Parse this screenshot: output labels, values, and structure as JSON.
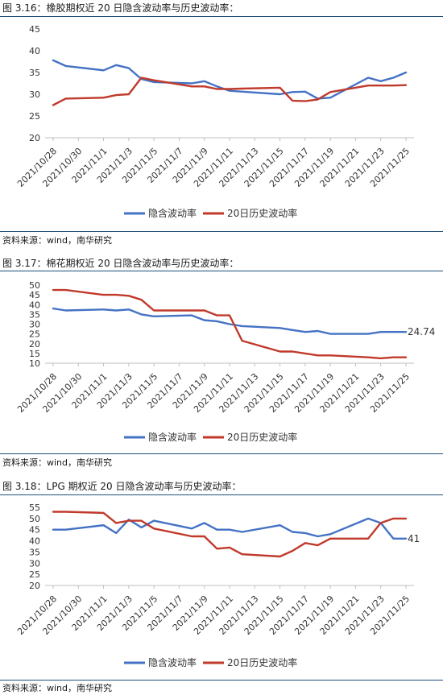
{
  "figures": [
    {
      "title": "图 3.16：橡胶期权近 20 日隐含波动率与历史波动率：",
      "source": "资料来源：wind，南华研究"
    },
    {
      "title": "图 3.17：棉花期权近 20 日隐含波动率与历史波动率：",
      "source": "资料来源：wind，南华研究"
    },
    {
      "title": "图 3.18：LPG 期权近 20 日隐含波动率与历史波动率：",
      "source": "资料来源：wind，南华研究"
    }
  ],
  "colors": {
    "implied": "#4472c4",
    "historical": "#c0392b",
    "rule": "#1f4e79",
    "grid": "#d9d9d9"
  },
  "chart_data": [
    {
      "type": "line",
      "x_ticks": [
        "2021/10/28",
        "2021/10/30",
        "2021/11/1",
        "2021/11/3",
        "2021/11/5",
        "2021/11/7",
        "2021/11/9",
        "2021/11/11",
        "2021/11/13",
        "2021/11/15",
        "2021/11/17",
        "2021/11/19",
        "2021/11/21",
        "2021/11/23",
        "2021/11/25"
      ],
      "ylim": [
        20,
        45
      ],
      "y_ticks": [
        20,
        25,
        30,
        35,
        40,
        45
      ],
      "legend": "bottom",
      "series": [
        {
          "name": "隐含波动率",
          "color": "#4472c4",
          "x": [
            "2021/10/28",
            "2021/10/29",
            "2021/11/1",
            "2021/11/2",
            "2021/11/3",
            "2021/11/4",
            "2021/11/5",
            "2021/11/8",
            "2021/11/9",
            "2021/11/10",
            "2021/11/11",
            "2021/11/12",
            "2021/11/15",
            "2021/11/16",
            "2021/11/17",
            "2021/11/18",
            "2021/11/19",
            "2021/11/22",
            "2021/11/23",
            "2021/11/24",
            "2021/11/25"
          ],
          "values": [
            37.8,
            36.5,
            35.5,
            36.7,
            36.0,
            33.5,
            32.8,
            32.5,
            33.0,
            31.8,
            30.8,
            30.6,
            30.0,
            30.5,
            30.6,
            29.0,
            29.2,
            33.8,
            33.0,
            33.8,
            35.0
          ]
        },
        {
          "name": "20日历史波动率",
          "color": "#c0392b",
          "x": [
            "2021/10/28",
            "2021/10/29",
            "2021/11/1",
            "2021/11/2",
            "2021/11/3",
            "2021/11/4",
            "2021/11/5",
            "2021/11/8",
            "2021/11/9",
            "2021/11/10",
            "2021/11/11",
            "2021/11/12",
            "2021/11/15",
            "2021/11/16",
            "2021/11/17",
            "2021/11/18",
            "2021/11/19",
            "2021/11/22",
            "2021/11/23",
            "2021/11/24",
            "2021/11/25"
          ],
          "values": [
            27.5,
            29.0,
            29.2,
            29.8,
            30.0,
            33.8,
            33.2,
            31.8,
            31.8,
            31.2,
            31.2,
            31.3,
            31.5,
            28.5,
            28.4,
            28.8,
            30.5,
            32.0,
            32.0,
            32.0,
            32.1
          ]
        }
      ]
    },
    {
      "type": "line",
      "x_ticks": [
        "2021/10/28",
        "2021/10/30",
        "2021/11/1",
        "2021/11/3",
        "2021/11/5",
        "2021/11/7",
        "2021/11/9",
        "2021/11/11",
        "2021/11/13",
        "2021/11/15",
        "2021/11/17",
        "2021/11/19",
        "2021/11/21",
        "2021/11/23",
        "2021/11/25"
      ],
      "ylim": [
        10,
        50
      ],
      "y_ticks": [
        10,
        15,
        20,
        25,
        30,
        35,
        40,
        45,
        50
      ],
      "legend": "bottom",
      "annotation": "24.74",
      "series": [
        {
          "name": "隐含波动率",
          "color": "#4472c4",
          "x": [
            "2021/10/28",
            "2021/10/29",
            "2021/11/1",
            "2021/11/2",
            "2021/11/3",
            "2021/11/4",
            "2021/11/5",
            "2021/11/8",
            "2021/11/9",
            "2021/11/10",
            "2021/11/11",
            "2021/11/12",
            "2021/11/15",
            "2021/11/16",
            "2021/11/17",
            "2021/11/18",
            "2021/11/19",
            "2021/11/22",
            "2021/11/23",
            "2021/11/24",
            "2021/11/25"
          ],
          "values": [
            38.0,
            37.0,
            37.5,
            37.0,
            37.5,
            35.0,
            34.0,
            34.5,
            32.0,
            31.5,
            30.0,
            29.0,
            28.0,
            27.0,
            26.0,
            26.5,
            25.0,
            25.0,
            26.0,
            26.0,
            26.0
          ]
        },
        {
          "name": "20日历史波动率",
          "color": "#c0392b",
          "x": [
            "2021/10/28",
            "2021/10/29",
            "2021/11/1",
            "2021/11/2",
            "2021/11/3",
            "2021/11/4",
            "2021/11/5",
            "2021/11/8",
            "2021/11/9",
            "2021/11/10",
            "2021/11/11",
            "2021/11/12",
            "2021/11/15",
            "2021/11/16",
            "2021/11/17",
            "2021/11/18",
            "2021/11/19",
            "2021/11/22",
            "2021/11/23",
            "2021/11/24",
            "2021/11/25"
          ],
          "values": [
            47.5,
            47.5,
            45.0,
            45.0,
            44.5,
            42.5,
            37.0,
            37.0,
            37.0,
            34.5,
            34.5,
            21.5,
            16.0,
            16.0,
            15.0,
            14.0,
            14.0,
            13.0,
            12.5,
            13.0,
            13.0
          ]
        }
      ]
    },
    {
      "type": "line",
      "x_ticks": [
        "2021/10/28",
        "2021/10/30",
        "2021/11/1",
        "2021/11/3",
        "2021/11/5",
        "2021/11/7",
        "2021/11/9",
        "2021/11/11",
        "2021/11/13",
        "2021/11/15",
        "2021/11/17",
        "2021/11/19",
        "2021/11/21",
        "2021/11/23",
        "2021/11/25"
      ],
      "ylim": [
        20,
        55
      ],
      "y_ticks": [
        20,
        25,
        30,
        35,
        40,
        45,
        50,
        55
      ],
      "legend": "bottom",
      "annotation": "41",
      "series": [
        {
          "name": "隐含波动率",
          "color": "#4472c4",
          "x": [
            "2021/10/28",
            "2021/10/29",
            "2021/11/1",
            "2021/11/2",
            "2021/11/3",
            "2021/11/4",
            "2021/11/5",
            "2021/11/8",
            "2021/11/9",
            "2021/11/10",
            "2021/11/11",
            "2021/11/12",
            "2021/11/15",
            "2021/11/16",
            "2021/11/17",
            "2021/11/18",
            "2021/11/19",
            "2021/11/22",
            "2021/11/23",
            "2021/11/24",
            "2021/11/25"
          ],
          "values": [
            45.0,
            45.0,
            47.0,
            43.5,
            49.5,
            46.0,
            49.0,
            45.5,
            48.0,
            45.0,
            45.0,
            44.0,
            47.0,
            44.0,
            43.5,
            42.0,
            43.0,
            50.0,
            48.0,
            41.0,
            41.0
          ]
        },
        {
          "name": "20日历史波动率",
          "color": "#c0392b",
          "x": [
            "2021/10/28",
            "2021/10/29",
            "2021/11/1",
            "2021/11/2",
            "2021/11/3",
            "2021/11/4",
            "2021/11/5",
            "2021/11/8",
            "2021/11/9",
            "2021/11/10",
            "2021/11/11",
            "2021/11/12",
            "2021/11/15",
            "2021/11/16",
            "2021/11/17",
            "2021/11/18",
            "2021/11/19",
            "2021/11/22",
            "2021/11/23",
            "2021/11/24",
            "2021/11/25"
          ],
          "values": [
            53.0,
            53.0,
            52.5,
            48.0,
            49.0,
            49.0,
            45.5,
            42.0,
            42.0,
            36.5,
            37.0,
            34.0,
            33.0,
            35.5,
            39.0,
            38.0,
            41.0,
            41.0,
            48.0,
            50.0,
            50.0
          ]
        }
      ]
    }
  ]
}
